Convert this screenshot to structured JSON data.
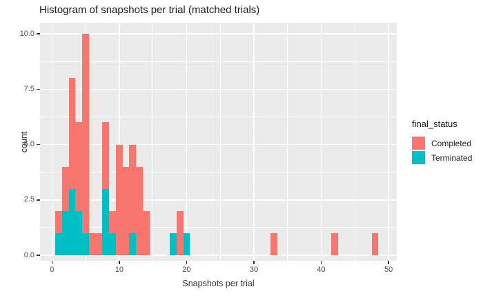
{
  "title": "Histogram of snapshots per trial (matched trials)",
  "colors": {
    "panel_bg": "#EBEBEB",
    "grid": "#FFFFFF",
    "tick": "#333333",
    "tick_label": "#4D4D4D",
    "completed": "#F8766D",
    "terminated": "#00BFC4"
  },
  "chart_data": {
    "type": "bar",
    "subtype": "stacked-histogram",
    "title": "Histogram of snapshots per trial (matched trials)",
    "xlabel": "Snapshots per trial",
    "ylabel": "count",
    "x_ticks": [
      0,
      10,
      20,
      30,
      40,
      50
    ],
    "y_ticks": [
      0.0,
      2.5,
      5.0,
      7.5,
      10.0
    ],
    "xlim": [
      -1.8,
      51.2
    ],
    "ylim": [
      -0.25,
      10.5
    ],
    "grid": true,
    "binwidth": 1,
    "legend_position": "right",
    "legend": {
      "title": "final_status",
      "entries": [
        {
          "label": "Completed",
          "color": "#F8766D"
        },
        {
          "label": "Terminated",
          "color": "#00BFC4"
        }
      ]
    },
    "bins": [
      {
        "x": 1,
        "terminated": 1,
        "completed": 1
      },
      {
        "x": 2,
        "terminated": 2,
        "completed": 2
      },
      {
        "x": 3,
        "terminated": 3,
        "completed": 5
      },
      {
        "x": 4,
        "terminated": 2,
        "completed": 4
      },
      {
        "x": 5,
        "terminated": 1,
        "completed": 9
      },
      {
        "x": 6,
        "terminated": 0,
        "completed": 1
      },
      {
        "x": 7,
        "terminated": 0,
        "completed": 1
      },
      {
        "x": 8,
        "terminated": 3,
        "completed": 3
      },
      {
        "x": 9,
        "terminated": 1,
        "completed": 1
      },
      {
        "x": 10,
        "terminated": 0,
        "completed": 5
      },
      {
        "x": 11,
        "terminated": 0,
        "completed": 4
      },
      {
        "x": 12,
        "terminated": 1,
        "completed": 4
      },
      {
        "x": 13,
        "terminated": 0,
        "completed": 4
      },
      {
        "x": 14,
        "terminated": 0,
        "completed": 2
      },
      {
        "x": 18,
        "terminated": 1,
        "completed": 0
      },
      {
        "x": 19,
        "terminated": 0,
        "completed": 2
      },
      {
        "x": 20,
        "terminated": 1,
        "completed": 0
      },
      {
        "x": 33,
        "terminated": 0,
        "completed": 1
      },
      {
        "x": 42,
        "terminated": 0,
        "completed": 1
      },
      {
        "x": 48,
        "terminated": 0,
        "completed": 1
      }
    ]
  }
}
